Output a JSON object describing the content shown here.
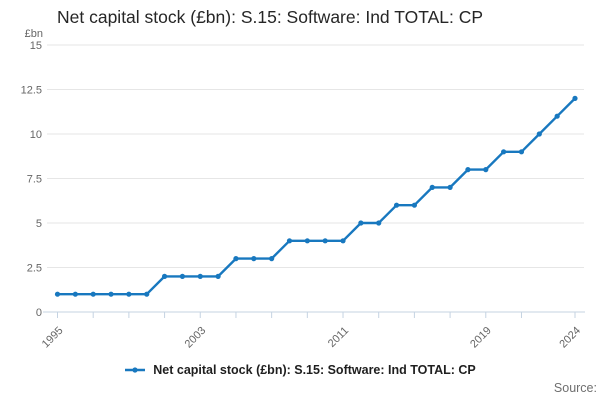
{
  "chart_data": {
    "type": "line",
    "title": "Net capital stock (£bn): S.15: Software: Ind TOTAL: CP",
    "unit": "£bn",
    "x": [
      1995,
      1996,
      1997,
      1998,
      1999,
      2000,
      2001,
      2002,
      2003,
      2004,
      2005,
      2006,
      2007,
      2008,
      2009,
      2010,
      2011,
      2012,
      2013,
      2014,
      2015,
      2016,
      2017,
      2018,
      2019,
      2020,
      2021,
      2022,
      2023,
      2024
    ],
    "series": [
      {
        "name": "Net capital stock (£bn): S.15: Software: Ind TOTAL: CP",
        "values": [
          1,
          1,
          1,
          1,
          1,
          1,
          2,
          2,
          2,
          2,
          3,
          3,
          3,
          4,
          4,
          4,
          4,
          5,
          5,
          6,
          6,
          7,
          7,
          8,
          8,
          9,
          9,
          10,
          11,
          12
        ],
        "color": "#1878bf"
      }
    ],
    "ylim": [
      0,
      15
    ],
    "yticks": [
      0,
      2.5,
      5,
      7.5,
      10,
      12.5,
      15
    ],
    "xticks": [
      1995,
      1997,
      1999,
      2001,
      2003,
      2005,
      2007,
      2009,
      2011,
      2013,
      2015,
      2017,
      2019,
      2021,
      2024
    ],
    "xtick_labels": [
      "1995",
      "2003",
      "2011",
      "2019",
      "2024"
    ],
    "grid": true,
    "legend_position": "bottom",
    "grid_color": "#e6e6e6",
    "axis_color": "#c5d3e2",
    "tick_label_color": "#666666"
  },
  "legend": {
    "label": "Net capital stock (£bn): S.15: Software: Ind TOTAL: CP"
  },
  "footer": {
    "source_label": "Source:"
  }
}
